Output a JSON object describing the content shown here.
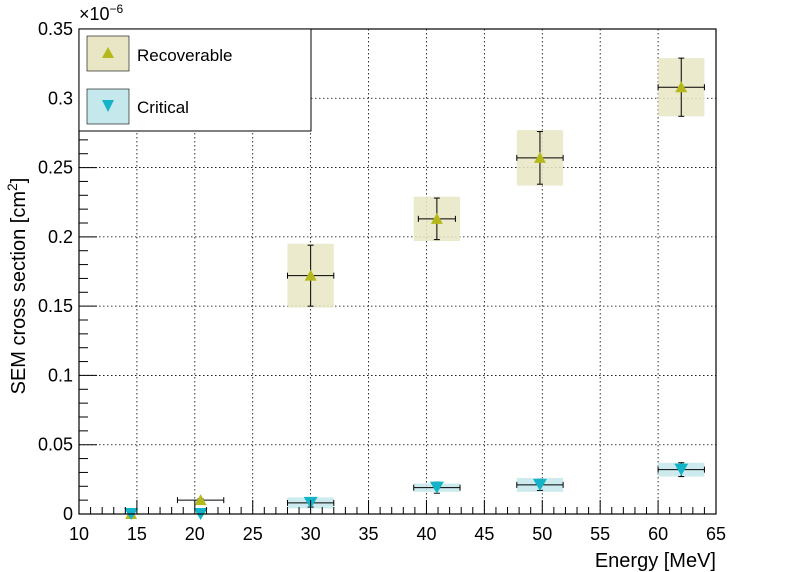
{
  "chart_data": {
    "type": "scatter",
    "title": "",
    "xlabel": "Energy [MeV]",
    "ylabel": "SEM cross section [cm",
    "ylabel_sup": "2",
    "ylabel_end": "]",
    "y_multiplier": "×10",
    "y_multiplier_exp": "−6",
    "xlim": [
      10,
      65
    ],
    "ylim": [
      0,
      0.35
    ],
    "x_ticks": [
      10,
      15,
      20,
      25,
      30,
      35,
      40,
      45,
      50,
      55,
      60,
      65
    ],
    "x_tick_labels": [
      "10",
      "15",
      "20",
      "25",
      "30",
      "35",
      "40",
      "45",
      "50",
      "55",
      "60",
      "65"
    ],
    "y_ticks": [
      0,
      0.05,
      0.1,
      0.15,
      0.2,
      0.25,
      0.3,
      0.35
    ],
    "y_tick_labels": [
      "0",
      "0.05",
      "0.1",
      "0.15",
      "0.2",
      "0.25",
      "0.3",
      "0.35"
    ],
    "grid": true,
    "legend_position": "top-left",
    "series": [
      {
        "name": "Recoverable",
        "marker": "triangle-up",
        "color": "#b5b81a",
        "band_color": "#e8e6c4",
        "points": [
          {
            "x": 14.5,
            "y": 0.0,
            "xerr": 0,
            "yerr": 0,
            "band_w": 0,
            "band_h": 0
          },
          {
            "x": 20.5,
            "y": 0.01,
            "xerr": 2.0,
            "yerr": 0.001,
            "band_w": 0,
            "band_h": 0
          },
          {
            "x": 30.0,
            "y": 0.172,
            "xerr": 2.0,
            "yerr": 0.022,
            "band_w": 2.0,
            "band_h": 0.023
          },
          {
            "x": 40.9,
            "y": 0.213,
            "xerr": 1.6,
            "yerr": 0.015,
            "band_w": 2.0,
            "band_h": 0.016
          },
          {
            "x": 49.8,
            "y": 0.257,
            "xerr": 2.0,
            "yerr": 0.019,
            "band_w": 2.0,
            "band_h": 0.02
          },
          {
            "x": 62.0,
            "y": 0.308,
            "xerr": 2.0,
            "yerr": 0.021,
            "band_w": 2.0,
            "band_h": 0.021
          }
        ]
      },
      {
        "name": "Critical",
        "marker": "triangle-down",
        "color": "#14b4c8",
        "band_color": "#c4e8ec",
        "points": [
          {
            "x": 14.5,
            "y": 0.0,
            "xerr": 0,
            "yerr": 0,
            "band_w": 0,
            "band_h": 0
          },
          {
            "x": 20.5,
            "y": 0.0,
            "xerr": 0,
            "yerr": 0,
            "band_w": 0,
            "band_h": 0
          },
          {
            "x": 30.0,
            "y": 0.008,
            "xerr": 2.0,
            "yerr": 0.003,
            "band_w": 2.0,
            "band_h": 0.004
          },
          {
            "x": 40.9,
            "y": 0.019,
            "xerr": 2.0,
            "yerr": 0.004,
            "band_w": 2.0,
            "band_h": 0.003
          },
          {
            "x": 49.8,
            "y": 0.021,
            "xerr": 2.0,
            "yerr": 0.004,
            "band_w": 2.0,
            "band_h": 0.005
          },
          {
            "x": 62.0,
            "y": 0.032,
            "xerr": 2.0,
            "yerr": 0.005,
            "band_w": 2.0,
            "band_h": 0.005
          }
        ]
      }
    ]
  }
}
